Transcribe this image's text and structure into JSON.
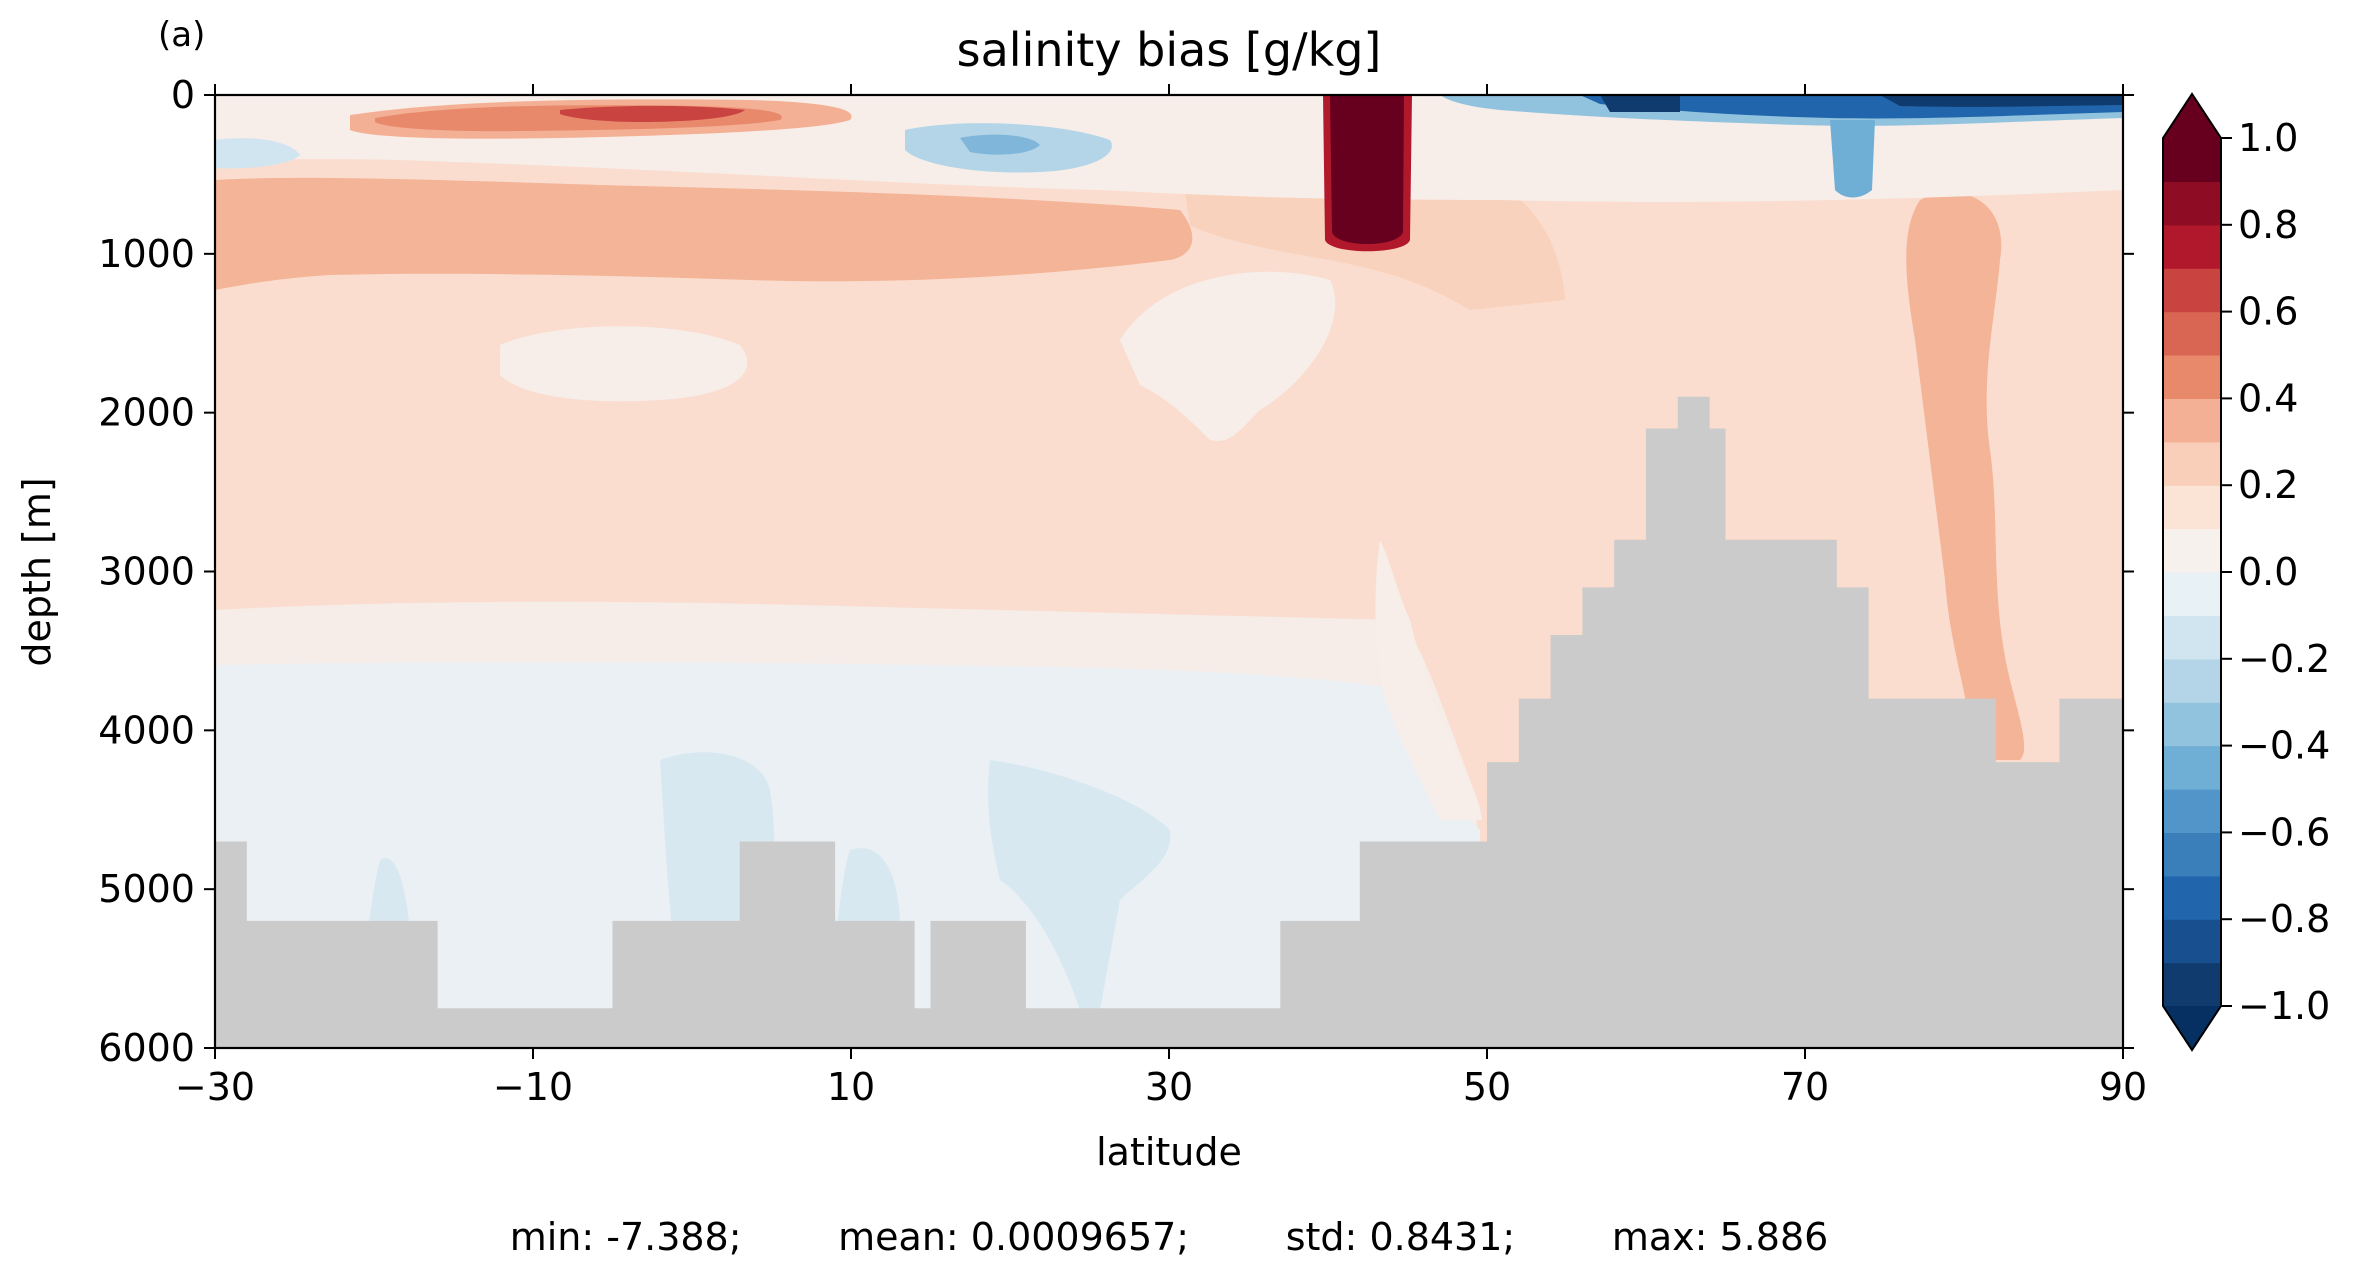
{
  "chart_data": {
    "type": "heatmap",
    "panel_label": "(a)",
    "title": "salinity bias [g/kg]",
    "xlabel": "latitude",
    "ylabel": "depth [m]",
    "xlim": [
      -30,
      90
    ],
    "ylim": [
      6000,
      0
    ],
    "y_inverted": true,
    "grid": false,
    "xticks": [
      -30,
      -10,
      10,
      30,
      50,
      70,
      90
    ],
    "xtick_labels": [
      "−30",
      "−10",
      "10",
      "30",
      "50",
      "70",
      "90"
    ],
    "yticks": [
      0,
      1000,
      2000,
      3000,
      4000,
      5000,
      6000
    ],
    "ytick_labels": [
      "0",
      "1000",
      "2000",
      "3000",
      "4000",
      "5000",
      "6000"
    ],
    "colorbar": {
      "cmap": "RdBu_r",
      "vmin": -1.0,
      "vmax": 1.0,
      "levels": [
        -1.0,
        -0.9,
        -0.8,
        -0.7,
        -0.6,
        -0.5,
        -0.4,
        -0.3,
        -0.2,
        -0.1,
        0.0,
        0.1,
        0.2,
        0.3,
        0.4,
        0.5,
        0.6,
        0.7,
        0.8,
        0.9,
        1.0
      ],
      "extend": "both",
      "ticks": [
        -1.0,
        -0.8,
        -0.6,
        -0.4,
        -0.2,
        0.0,
        0.2,
        0.4,
        0.6,
        0.8,
        1.0
      ],
      "tick_labels": [
        "−1.0",
        "−0.8",
        "−0.6",
        "−0.4",
        "−0.2",
        "0.0",
        "0.2",
        "0.4",
        "0.6",
        "0.8",
        "1.0"
      ],
      "colors": [
        "#0f3b6e",
        "#174f8f",
        "#2166ac",
        "#3a7fba",
        "#5296c9",
        "#6faed5",
        "#92c3de",
        "#b3d5e7",
        "#d1e5f0",
        "#e8f1f6",
        "#f7f1ee",
        "#fbe3d6",
        "#f9cfb9",
        "#f4b094",
        "#e9896c",
        "#d96652",
        "#c94341",
        "#b2182b",
        "#8e0d24",
        "#67001f"
      ],
      "under_color": "#053061",
      "over_color": "#67001f"
    },
    "bathymetry_color": "#cbcbcb",
    "bathymetry_depth_profile": [
      [
        -30,
        4700
      ],
      [
        -28,
        4700
      ],
      [
        -28,
        5200
      ],
      [
        -16,
        5200
      ],
      [
        -16,
        5750
      ],
      [
        -5,
        5750
      ],
      [
        -5,
        5200
      ],
      [
        3,
        5200
      ],
      [
        3,
        4700
      ],
      [
        9,
        4700
      ],
      [
        9,
        5200
      ],
      [
        14,
        5200
      ],
      [
        14,
        5750
      ],
      [
        15,
        5750
      ],
      [
        15,
        5200
      ],
      [
        21,
        5200
      ],
      [
        21,
        5750
      ],
      [
        37,
        5750
      ],
      [
        37,
        5200
      ],
      [
        42,
        5200
      ],
      [
        42,
        4700
      ],
      [
        50,
        4700
      ],
      [
        50,
        4200
      ],
      [
        52,
        4200
      ],
      [
        52,
        3800
      ],
      [
        54,
        3800
      ],
      [
        54,
        3400
      ],
      [
        56,
        3400
      ],
      [
        56,
        3100
      ],
      [
        58,
        3100
      ],
      [
        58,
        2800
      ],
      [
        60,
        2800
      ],
      [
        60,
        2100
      ],
      [
        62,
        2100
      ],
      [
        62,
        1900
      ],
      [
        64,
        1900
      ],
      [
        64,
        2100
      ],
      [
        65,
        2100
      ],
      [
        65,
        2800
      ],
      [
        72,
        2800
      ],
      [
        72,
        3100
      ],
      [
        74,
        3100
      ],
      [
        74,
        3800
      ],
      [
        82,
        3800
      ],
      [
        82,
        4200
      ],
      [
        86,
        4200
      ],
      [
        86,
        3800
      ],
      [
        90,
        3800
      ],
      [
        90,
        6000
      ],
      [
        -30,
        6000
      ]
    ],
    "stats_text": "min: -7.388;        mean: 0.0009657;        std: 0.8431;        max: 5.886",
    "stats": {
      "min": -7.388,
      "mean": 0.0009657,
      "std": 0.8431,
      "max": 5.886
    }
  }
}
